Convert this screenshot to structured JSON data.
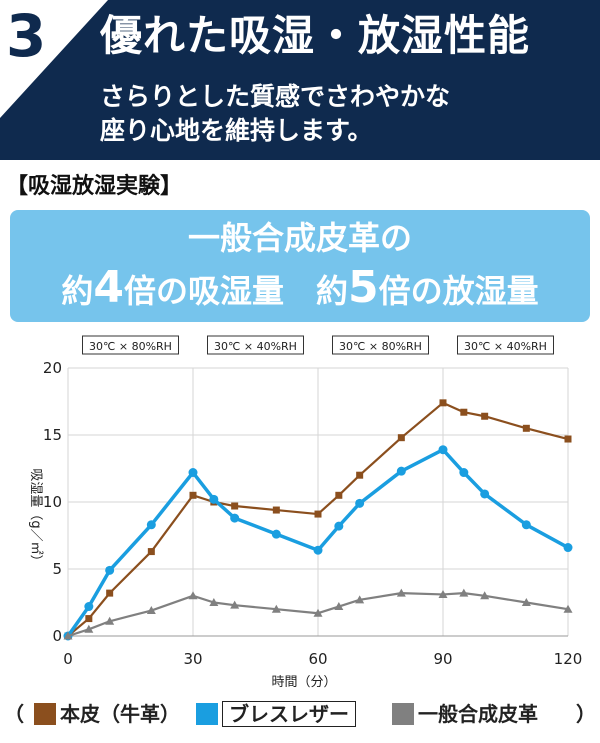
{
  "header": {
    "number": "3",
    "title": "優れた吸湿・放湿性能",
    "subtitle_lines": [
      "さらりとした質感でさわやかな",
      "座り心地を維持します。"
    ]
  },
  "section_label": "【吸湿放湿実験】",
  "banner": {
    "line1": "一般合成皮革の",
    "line2_a": "約",
    "line2_num1": "4",
    "line2_b": "倍の吸湿量　約",
    "line2_num2": "5",
    "line2_c": "倍の放湿量"
  },
  "legend": {
    "open_paren": "（",
    "close_paren": "）",
    "items": [
      {
        "label": "本皮（牛革）",
        "color": "#8b4f1e",
        "boxed": false
      },
      {
        "label": "ブレスレザー",
        "color": "#1a9ee0",
        "boxed": true
      },
      {
        "label": "一般合成皮革",
        "color": "#808080",
        "boxed": false
      }
    ]
  },
  "chart_data": {
    "type": "line",
    "ylabel": "吸湿量（g／㎡）",
    "xlabel": "時間（分）",
    "xlim": [
      0,
      120
    ],
    "ylim": [
      0,
      20
    ],
    "x_ticks": [
      0,
      30,
      60,
      90,
      120
    ],
    "y_ticks": [
      0,
      5,
      10,
      15,
      20
    ],
    "grid": true,
    "conditions": [
      {
        "label": "30℃ × 80%RH",
        "x_center": 15
      },
      {
        "label": "30℃ × 40%RH",
        "x_center": 45
      },
      {
        "label": "30℃ × 80%RH",
        "x_center": 75
      },
      {
        "label": "30℃ × 40%RH",
        "x_center": 105
      }
    ],
    "series": [
      {
        "name": "本皮（牛革）",
        "color": "#8b4f1e",
        "marker": "square",
        "x": [
          0,
          5,
          10,
          20,
          30,
          35,
          40,
          50,
          60,
          65,
          70,
          80,
          90,
          95,
          100,
          110,
          120
        ],
        "y": [
          0,
          1.3,
          3.2,
          6.3,
          10.5,
          10.0,
          9.7,
          9.4,
          9.1,
          10.5,
          12.0,
          14.8,
          17.4,
          16.7,
          16.4,
          15.5,
          14.7
        ]
      },
      {
        "name": "ブレスレザー",
        "color": "#1a9ee0",
        "marker": "circle",
        "x": [
          0,
          5,
          10,
          20,
          30,
          35,
          40,
          50,
          60,
          65,
          70,
          80,
          90,
          95,
          100,
          110,
          120
        ],
        "y": [
          0,
          2.2,
          4.9,
          8.3,
          12.2,
          10.2,
          8.8,
          7.6,
          6.4,
          8.2,
          9.9,
          12.3,
          13.9,
          12.2,
          10.6,
          8.3,
          6.6
        ]
      },
      {
        "name": "一般合成皮革",
        "color": "#808080",
        "marker": "triangle",
        "x": [
          0,
          5,
          10,
          20,
          30,
          35,
          40,
          50,
          60,
          65,
          70,
          80,
          90,
          95,
          100,
          110,
          120
        ],
        "y": [
          0,
          0.5,
          1.1,
          1.9,
          3.0,
          2.5,
          2.3,
          2.0,
          1.7,
          2.2,
          2.7,
          3.2,
          3.1,
          3.2,
          3.0,
          2.5,
          2.0
        ]
      }
    ]
  }
}
